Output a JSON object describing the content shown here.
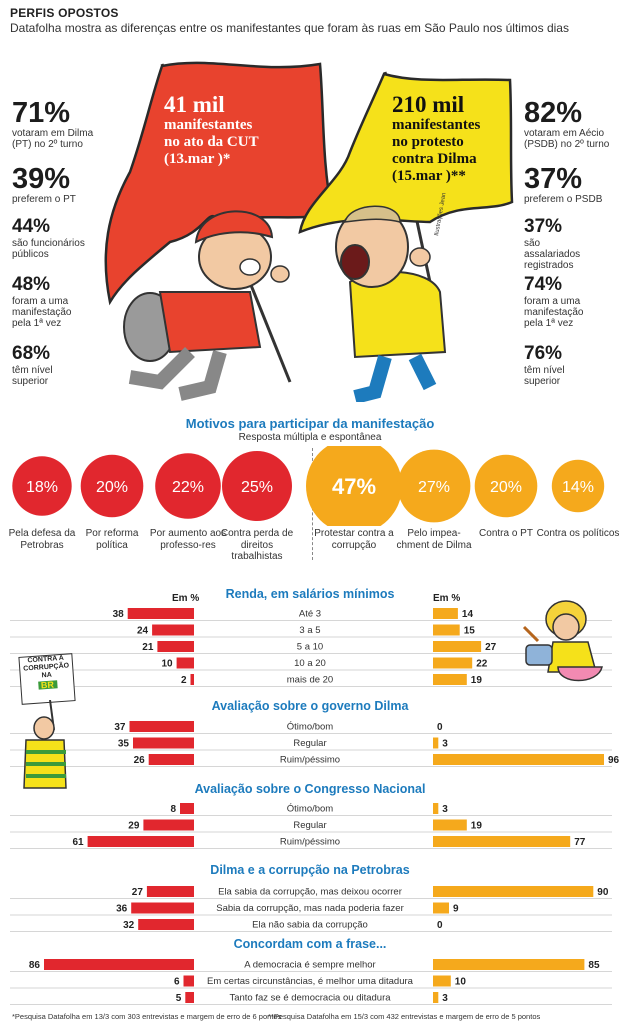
{
  "header": {
    "kicker": "PERFIS OPOSTOS",
    "subtitle": "Datafolha mostra as diferenças entre os manifestantes que foram às ruas em São Paulo nos últimos dias"
  },
  "flags": {
    "left": {
      "count": "41 mil",
      "line1": "manifestantes",
      "line2": "no ato da CUT",
      "line3": "(13.mar )*",
      "color": "#e8432e"
    },
    "right": {
      "count": "210 mil",
      "line1": "manifestantes",
      "line2": "no protesto",
      "line3": "contra Dilma",
      "line4": "(15.mar )**",
      "color": "#f5e11a"
    },
    "credit": "Ilustrações Jean"
  },
  "left_stats": [
    {
      "value": "71%",
      "label": "votaram em Dilma (PT) no 2º turno"
    },
    {
      "value": "39%",
      "label": "preferem o PT"
    },
    {
      "value": "44%",
      "label": "são funcionários públicos"
    },
    {
      "value": "48%",
      "label": "foram a uma manifestação pela 1ª vez"
    },
    {
      "value": "68%",
      "label": "têm nível superior"
    }
  ],
  "right_stats": [
    {
      "value": "82%",
      "label": "votaram em Aécio (PSDB) no 2º turno"
    },
    {
      "value": "37%",
      "label": "preferem o PSDB"
    },
    {
      "value": "37%",
      "label": "são assalariados registrados"
    },
    {
      "value": "74%",
      "label": "foram a uma manifestação pela 1ª vez"
    },
    {
      "value": "76%",
      "label": "têm nível superior"
    }
  ],
  "sign": {
    "line1": "CONTRA A",
    "line2": "CORRUPÇÃO",
    "line3": "NA",
    "badge": "BR"
  },
  "motives": {
    "title": "Motivos para participar da manifestação",
    "subtitle": "Resposta múltipla e espontânea"
  },
  "units": {
    "left": "Em %",
    "right": "Em %"
  },
  "footnote": {
    "left": "*Pesquisa Datafolha em 13/3 com 303 entrevistas e margem de erro de 6 pontos",
    "right": "**Pesquisa Datafolha em 15/3 com 432 entrevistas e margem de erro de 5 pontos"
  },
  "colors": {
    "red": "#e1272e",
    "orange": "#f5a91c",
    "blue": "#1d7bbd"
  },
  "chart_data": [
    {
      "type": "bubble",
      "title": "Motivos para participar da manifestação",
      "subtitle": "Resposta múltipla e espontânea",
      "series": [
        {
          "name": "Ato da CUT (13.mar)",
          "color": "#e1272e",
          "categories": [
            "Pela defesa da Petrobras",
            "Por reforma política",
            "Por aumento aos professores",
            "Contra perda de direitos trabalhistas"
          ],
          "labels": [
            "Pela defesa da Petrobras",
            "Por reforma política",
            "Por aumento aos professo-res",
            "Contra perda de direitos trabalhistas"
          ],
          "values": [
            18,
            20,
            22,
            25
          ]
        },
        {
          "name": "Protesto contra Dilma (15.mar)",
          "color": "#f5a91c",
          "categories": [
            "Protestar contra a corrupção",
            "Pelo impeachment de Dilma",
            "Contra o PT",
            "Contra os políticos"
          ],
          "labels": [
            "Protestar contra a corrupção",
            "Pelo impea-chment de Dilma",
            "Contra o PT",
            "Contra os políticos"
          ],
          "values": [
            47,
            27,
            20,
            14
          ]
        }
      ]
    },
    {
      "type": "bar",
      "orientation": "horizontal-diverging",
      "unit": "Em %",
      "series_names": [
        "Ato da CUT (13.mar)",
        "Protesto contra Dilma (15.mar)"
      ],
      "groups": [
        {
          "title": "Renda, em salários mínimos",
          "categories": [
            "Até 3",
            "3 a 5",
            "5 a 10",
            "10 a 20",
            "mais de 20"
          ],
          "left": [
            38,
            24,
            21,
            10,
            2
          ],
          "right": [
            14,
            15,
            27,
            22,
            19
          ]
        },
        {
          "title": "Avaliação sobre o governo Dilma",
          "categories": [
            "Ótimo/bom",
            "Regular",
            "Ruim/péssimo"
          ],
          "left": [
            37,
            35,
            26
          ],
          "right": [
            0,
            3,
            96
          ]
        },
        {
          "title": "Avaliação sobre o Congresso Nacional",
          "categories": [
            "Ótimo/bom",
            "Regular",
            "Ruim/péssimo"
          ],
          "left": [
            8,
            29,
            61
          ],
          "right": [
            3,
            19,
            77
          ]
        },
        {
          "title": "Dilma e a corrupção na Petrobras",
          "categories": [
            "Ela sabia da corrupção, mas deixou ocorrer",
            "Sabia da corrupção, mas nada poderia fazer",
            "Ela não sabia da corrupção"
          ],
          "left": [
            27,
            36,
            32
          ],
          "right": [
            90,
            9,
            0
          ]
        },
        {
          "title": "Concordam com a frase...",
          "categories": [
            "A democracia é sempre melhor",
            "Em certas circunstâncias, é melhor uma ditadura",
            "Tanto faz se é democracia ou ditadura"
          ],
          "left": [
            86,
            6,
            5
          ],
          "right": [
            85,
            10,
            3
          ]
        }
      ]
    }
  ]
}
